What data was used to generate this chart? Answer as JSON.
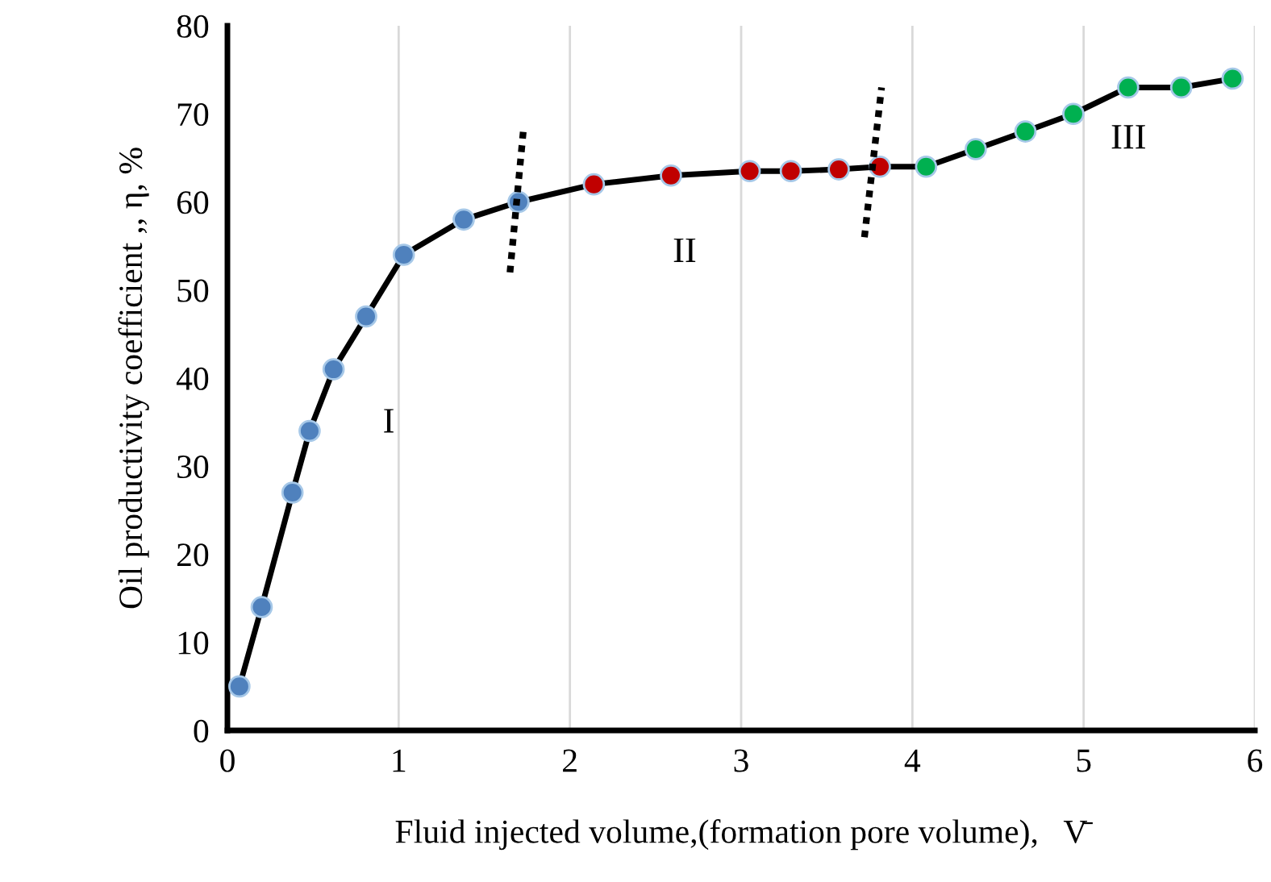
{
  "chart_data": {
    "type": "line",
    "xlabel": "Fluid injected volume,(formation pore volume),   V̄",
    "ylabel": "Oil productivity coefficient ,, η, %",
    "xlim": [
      0,
      6
    ],
    "ylim": [
      0,
      80
    ],
    "xticks": [
      0,
      1,
      2,
      3,
      4,
      5,
      6
    ],
    "yticks": [
      0,
      10,
      20,
      30,
      40,
      50,
      60,
      70,
      80
    ],
    "grid": "x",
    "marker": "circle",
    "line_style": "solid",
    "series": [
      {
        "color": "#000000",
        "x": [
          0.07,
          0.2,
          0.38,
          0.48,
          0.62,
          0.81,
          1.03,
          1.38,
          1.7,
          2.14,
          2.59,
          3.05,
          3.29,
          3.57,
          3.81,
          4.08,
          4.37,
          4.66,
          4.94,
          5.26,
          5.57,
          5.87
        ],
        "values": [
          5,
          14,
          27,
          34,
          41,
          47,
          54,
          58,
          60,
          62,
          63,
          63.5,
          63.5,
          63.7,
          64,
          64,
          66,
          68,
          70,
          73,
          73,
          74
        ],
        "colors": [
          "#4f81bd",
          "#4f81bd",
          "#4f81bd",
          "#4f81bd",
          "#4f81bd",
          "#4f81bd",
          "#4f81bd",
          "#4f81bd",
          "#4f81bd",
          "#c00000",
          "#c00000",
          "#c00000",
          "#c00000",
          "#c00000",
          "#c00000",
          "#00b050",
          "#00b050",
          "#00b050",
          "#00b050",
          "#00b050",
          "#00b050",
          "#00b050"
        ]
      }
    ],
    "annotations": [
      "I",
      "II",
      "III"
    ]
  }
}
